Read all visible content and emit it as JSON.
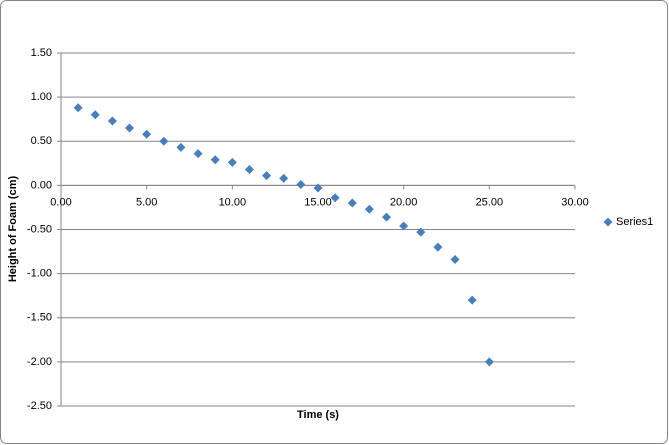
{
  "chart_data": {
    "type": "scatter",
    "x_label": "Time (s)",
    "y_label": "Height of Foam (cm)",
    "series": [
      {
        "name": "Series1",
        "color": "#4a7ebb",
        "x": [
          1,
          2,
          3,
          4,
          5,
          6,
          7,
          8,
          9,
          10,
          11,
          12,
          13,
          14,
          15,
          16,
          17,
          18,
          19,
          20,
          21,
          22,
          23,
          24,
          25
        ],
        "values": [
          0.88,
          0.8,
          0.73,
          0.65,
          0.58,
          0.5,
          0.43,
          0.36,
          0.29,
          0.26,
          0.18,
          0.11,
          0.08,
          0.01,
          -0.03,
          -0.14,
          -0.2,
          -0.27,
          -0.36,
          -0.46,
          -0.53,
          -0.7,
          -0.84,
          -1.3,
          -2.0
        ]
      }
    ],
    "xlim": [
      0,
      30
    ],
    "xticks": [
      {
        "value": 0,
        "label": "0.00"
      },
      {
        "value": 5,
        "label": "5.00"
      },
      {
        "value": 10,
        "label": "10.00"
      },
      {
        "value": 15,
        "label": "15.00"
      },
      {
        "value": 20,
        "label": "20.00"
      },
      {
        "value": 25,
        "label": "25.00"
      },
      {
        "value": 30,
        "label": "30.00"
      }
    ],
    "ylim": [
      -2.5,
      1.5
    ],
    "yticks": [
      {
        "value": 1.5,
        "label": "1.50"
      },
      {
        "value": 1,
        "label": "1.00"
      },
      {
        "value": 0.5,
        "label": "0.50"
      },
      {
        "value": 0,
        "label": "0.00"
      },
      {
        "value": -0.5,
        "label": "-0.50"
      },
      {
        "value": -1,
        "label": "-1.00"
      },
      {
        "value": -1.5,
        "label": "-1.50"
      },
      {
        "value": -2,
        "label": "-2.00"
      },
      {
        "value": -2.5,
        "label": "-2.50"
      }
    ],
    "grid": true,
    "legend": "right"
  }
}
